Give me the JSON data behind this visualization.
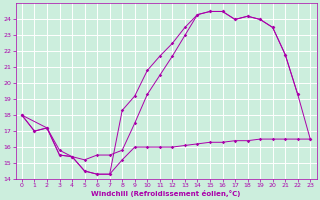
{
  "xlabel": "Windchill (Refroidissement éolien,°C)",
  "bg_color": "#cceedd",
  "grid_color": "#ffffff",
  "line_color": "#aa00aa",
  "xlim": [
    -0.5,
    23.5
  ],
  "ylim": [
    14,
    25
  ],
  "xticks": [
    0,
    1,
    2,
    3,
    4,
    5,
    6,
    7,
    8,
    9,
    10,
    11,
    12,
    13,
    14,
    15,
    16,
    17,
    18,
    19,
    20,
    21,
    22,
    23
  ],
  "yticks": [
    14,
    15,
    16,
    17,
    18,
    19,
    20,
    21,
    22,
    23,
    24
  ],
  "line1_x": [
    0,
    1,
    2,
    3,
    4,
    5,
    6,
    7,
    8,
    9,
    10,
    11,
    12,
    13,
    14,
    15,
    16,
    17,
    18,
    19,
    20,
    21,
    22,
    23
  ],
  "line1_y": [
    18.0,
    17.0,
    17.2,
    15.5,
    15.4,
    14.5,
    14.3,
    14.3,
    15.2,
    16.0,
    16.0,
    16.0,
    16.0,
    16.1,
    16.2,
    16.3,
    16.3,
    16.4,
    16.4,
    16.5,
    16.5,
    16.5,
    16.5,
    16.5
  ],
  "line2_x": [
    0,
    1,
    2,
    3,
    4,
    5,
    6,
    7,
    8,
    9,
    10,
    11,
    12,
    13,
    14,
    15,
    16,
    17,
    18,
    19,
    20,
    21,
    22
  ],
  "line2_y": [
    18.0,
    17.0,
    17.2,
    15.5,
    15.4,
    14.5,
    14.3,
    14.3,
    18.3,
    19.2,
    20.8,
    21.7,
    22.5,
    23.5,
    24.3,
    24.5,
    24.5,
    24.0,
    24.2,
    24.0,
    23.5,
    21.8,
    19.3
  ],
  "line3_x": [
    0,
    2,
    3,
    4,
    5,
    6,
    7,
    8,
    9,
    10,
    11,
    12,
    13,
    14,
    15,
    16,
    17,
    18,
    19,
    20,
    21,
    22,
    23
  ],
  "line3_y": [
    18.0,
    17.2,
    15.8,
    15.4,
    15.2,
    15.5,
    15.5,
    15.8,
    17.5,
    19.3,
    20.5,
    21.7,
    23.0,
    24.3,
    24.5,
    24.5,
    24.0,
    24.2,
    24.0,
    23.5,
    21.8,
    19.3,
    16.5
  ],
  "marker_size": 1.8,
  "line_width": 0.7,
  "tick_fontsize": 4.5,
  "xlabel_fontsize": 5.0
}
